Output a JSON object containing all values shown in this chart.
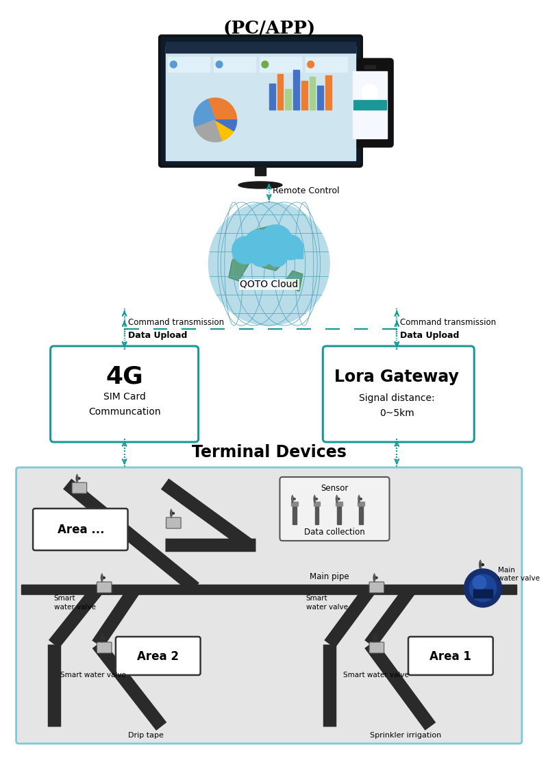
{
  "bg_color": "#ffffff",
  "teal": "#1a9898",
  "box_border": "#1a9898",
  "box_fill": "#ffffff",
  "terminal_bg": "#e5e5e5",
  "terminal_border": "#7ec8d8",
  "pipe_color": "#2a2a2a",
  "pc_label": "(PC/APP)",
  "cloud_label": "QOTO Cloud",
  "remote_label": "Remote Control",
  "left_cmd": "Command transmission",
  "left_data": "Data Upload",
  "right_cmd": "Command transmission",
  "right_data": "Data Upload",
  "box4g_title": "4G",
  "box4g_sub": "SIM Card\nCommuncation",
  "box_lora_title": "Lora Gateway",
  "box_lora_sub": "Signal distance:\n0~5km",
  "terminal_title": "Terminal Devices",
  "sensor_label": "Sensor",
  "data_collection_label": "Data collection",
  "main_pipe_label": "Main pipe",
  "main_valve_label": "Main\nwater valve",
  "area_dots_label": "Area ...",
  "area2_label": "Area 2",
  "area1_label": "Area 1",
  "drip_tape_label": "Drip tape",
  "sprinkler_label": "Sprinkler irrigation",
  "smart_valve_label1": "Smart\nwater valve",
  "smart_valve_label2": "Smart water valve"
}
